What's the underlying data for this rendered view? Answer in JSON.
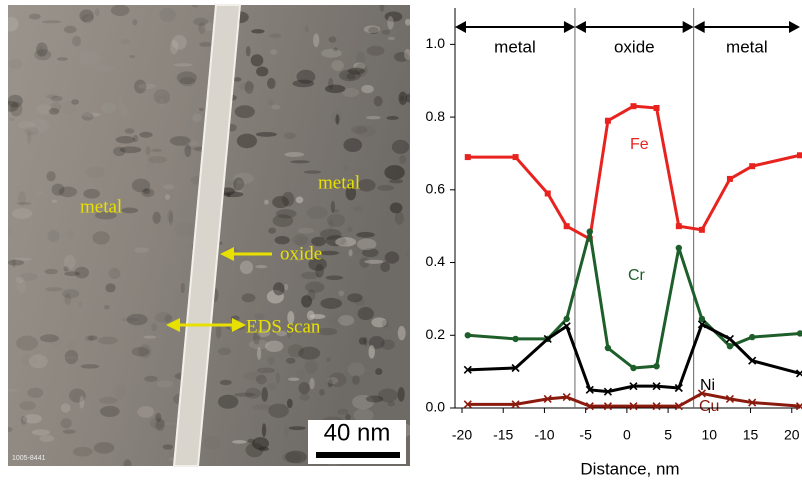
{
  "image": {
    "labels": [
      "metal",
      "metal",
      "oxide",
      "EDS scan"
    ],
    "scale_bar": "40 nm",
    "id": "1005-8441"
  },
  "chart_data": {
    "type": "line",
    "xlabel": "Distance, nm",
    "xlim": [
      -20,
      21
    ],
    "xticks": [
      -20,
      -15,
      -10,
      -5,
      0,
      5,
      10,
      15,
      20
    ],
    "ylim": [
      0,
      1.1
    ],
    "yticks": [
      {
        "value": 0,
        "label": "0.0"
      },
      0.2,
      0.4,
      0.6,
      0.8,
      {
        "value": 1,
        "label": "1.0"
      }
    ],
    "boundaries": [
      -6.3,
      8.1
    ],
    "regions": [
      "metal",
      "oxide",
      "metal"
    ],
    "x": [
      -19.3,
      -13.5,
      -9.6,
      -7.3,
      -4.5,
      -2.3,
      0.8,
      3.6,
      6.3,
      9.1,
      12.5,
      15.2,
      21
    ],
    "series": [
      {
        "name": "Fe",
        "color": "#e8231f",
        "marker": "square",
        "values": [
          0.69,
          0.69,
          0.59,
          0.5,
          0.465,
          0.79,
          0.83,
          0.825,
          0.5,
          0.49,
          0.63,
          0.665,
          0.695
        ]
      },
      {
        "name": "Cr",
        "color": "#1e5e2a",
        "marker": "circle",
        "values": [
          0.2,
          0.19,
          0.19,
          0.245,
          0.485,
          0.165,
          0.11,
          0.115,
          0.44,
          0.245,
          0.17,
          0.195,
          0.205
        ]
      },
      {
        "name": "Ni",
        "color": "#000000",
        "marker": "x",
        "values": [
          0.105,
          0.11,
          0.19,
          0.225,
          0.05,
          0.045,
          0.06,
          0.06,
          0.055,
          0.23,
          0.19,
          0.13,
          0.095
        ]
      },
      {
        "name": "Cu",
        "color": "#8b1a0e",
        "marker": "x",
        "values": [
          0.01,
          0.01,
          0.025,
          0.03,
          0.005,
          0.005,
          0.005,
          0.005,
          0.005,
          0.04,
          0.025,
          0.015,
          0.005
        ]
      }
    ]
  }
}
